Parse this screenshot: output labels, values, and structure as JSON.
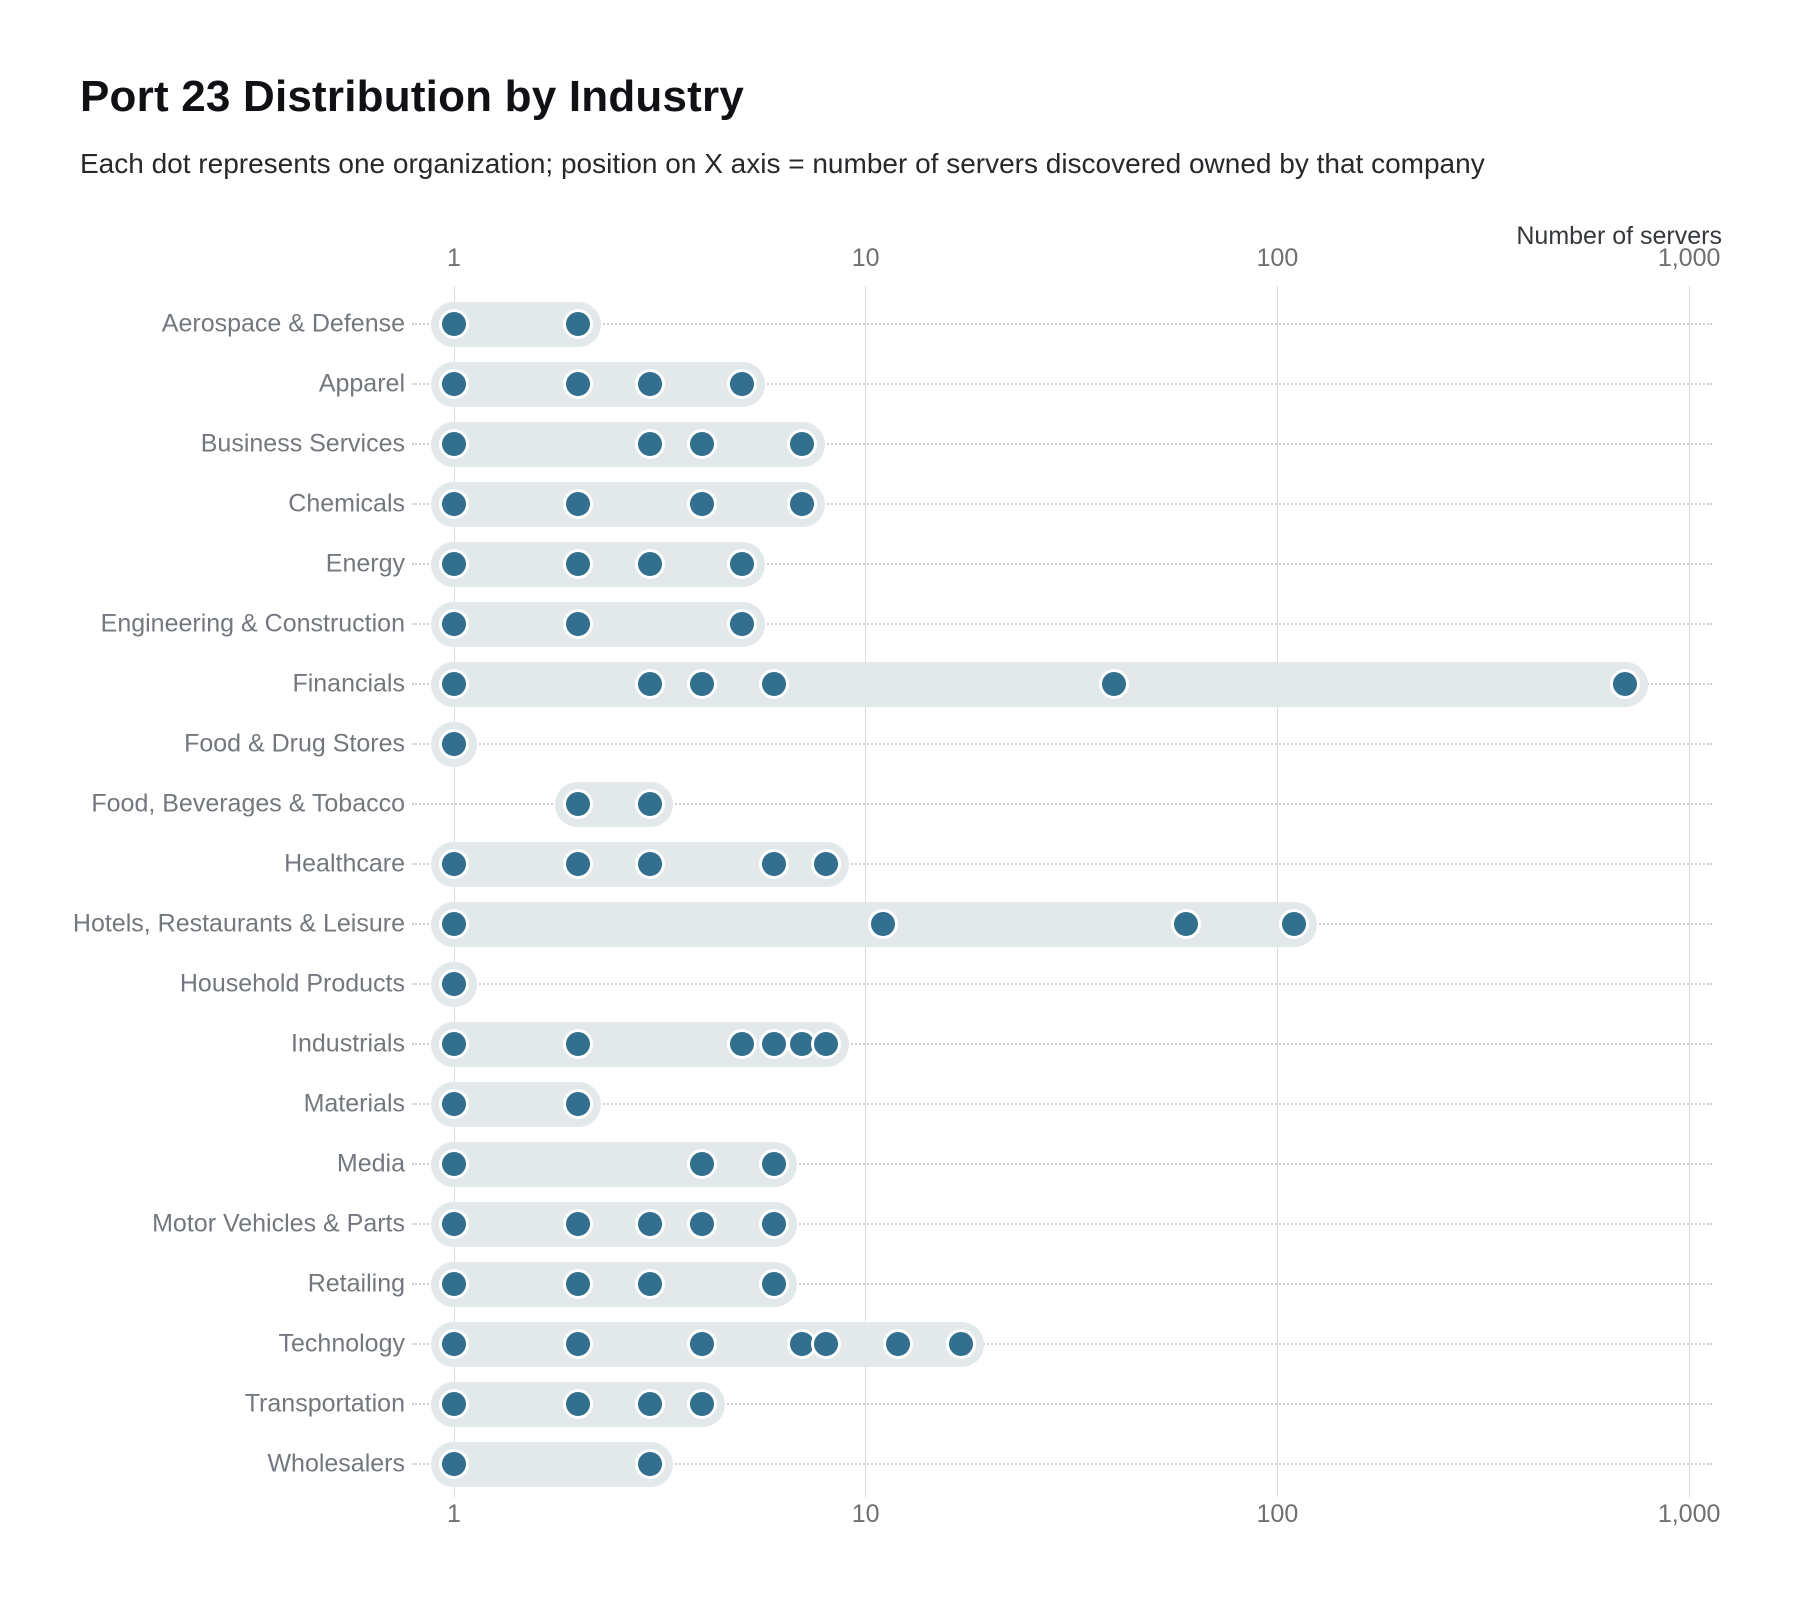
{
  "title": "Port 23 Distribution by Industry",
  "subtitle": "Each dot represents one organization; position on X axis = number of servers discovered owned by that company",
  "axis": {
    "label": "Number of servers",
    "tick_labels": [
      "1",
      "10",
      "100",
      "1,000"
    ],
    "tick_values": [
      1,
      10,
      100,
      1000
    ]
  },
  "colors": {
    "dot": "#33708f",
    "band": "#e3e8ea",
    "gridline": "#d7dbdd",
    "leader_dots": "#ccd1d4",
    "category_text": "#73787e",
    "tick_text": "#6e6f71",
    "title_text": "#101114"
  },
  "chart_data": {
    "type": "scatter",
    "variant": "horizontal-dot-strip-plot",
    "title": "Port 23 Distribution by Industry",
    "subtitle": "Each dot represents one organization; position on X axis = number of servers discovered owned by that company",
    "xlabel": "Number of servers",
    "x_scale": "log10",
    "xlim": [
      1,
      1000
    ],
    "grid": "vertical lines at decades, dotted row leader lines",
    "legend": "none",
    "rows": [
      {
        "industry": "Aerospace & Defense",
        "values": [
          1,
          2
        ]
      },
      {
        "industry": "Apparel",
        "values": [
          1,
          2,
          3,
          5
        ]
      },
      {
        "industry": "Business Services",
        "values": [
          1,
          3,
          4,
          7
        ]
      },
      {
        "industry": "Chemicals",
        "values": [
          1,
          2,
          4,
          7
        ]
      },
      {
        "industry": "Energy",
        "values": [
          1,
          2,
          3,
          5
        ]
      },
      {
        "industry": "Engineering & Construction",
        "values": [
          1,
          2,
          5
        ]
      },
      {
        "industry": "Financials",
        "values": [
          1,
          3,
          4,
          6,
          40,
          700
        ]
      },
      {
        "industry": "Food & Drug Stores",
        "values": [
          1
        ]
      },
      {
        "industry": "Food, Beverages & Tobacco",
        "values": [
          2,
          3
        ]
      },
      {
        "industry": "Healthcare",
        "values": [
          1,
          2,
          3,
          6,
          8
        ]
      },
      {
        "industry": "Hotels, Restaurants & Leisure",
        "values": [
          1,
          11,
          60,
          110
        ]
      },
      {
        "industry": "Household Products",
        "values": [
          1
        ]
      },
      {
        "industry": "Industrials",
        "values": [
          1,
          2,
          5,
          6,
          7,
          8
        ]
      },
      {
        "industry": "Materials",
        "values": [
          1,
          2
        ]
      },
      {
        "industry": "Media",
        "values": [
          1,
          4,
          6
        ]
      },
      {
        "industry": "Motor Vehicles & Parts",
        "values": [
          1,
          2,
          3,
          4,
          6
        ]
      },
      {
        "industry": "Retailing",
        "values": [
          1,
          2,
          3,
          6
        ]
      },
      {
        "industry": "Technology",
        "values": [
          1,
          2,
          4,
          7,
          8,
          12,
          17
        ]
      },
      {
        "industry": "Transportation",
        "values": [
          1,
          2,
          3,
          4
        ]
      },
      {
        "industry": "Wholesalers",
        "values": [
          1,
          3
        ]
      }
    ]
  }
}
